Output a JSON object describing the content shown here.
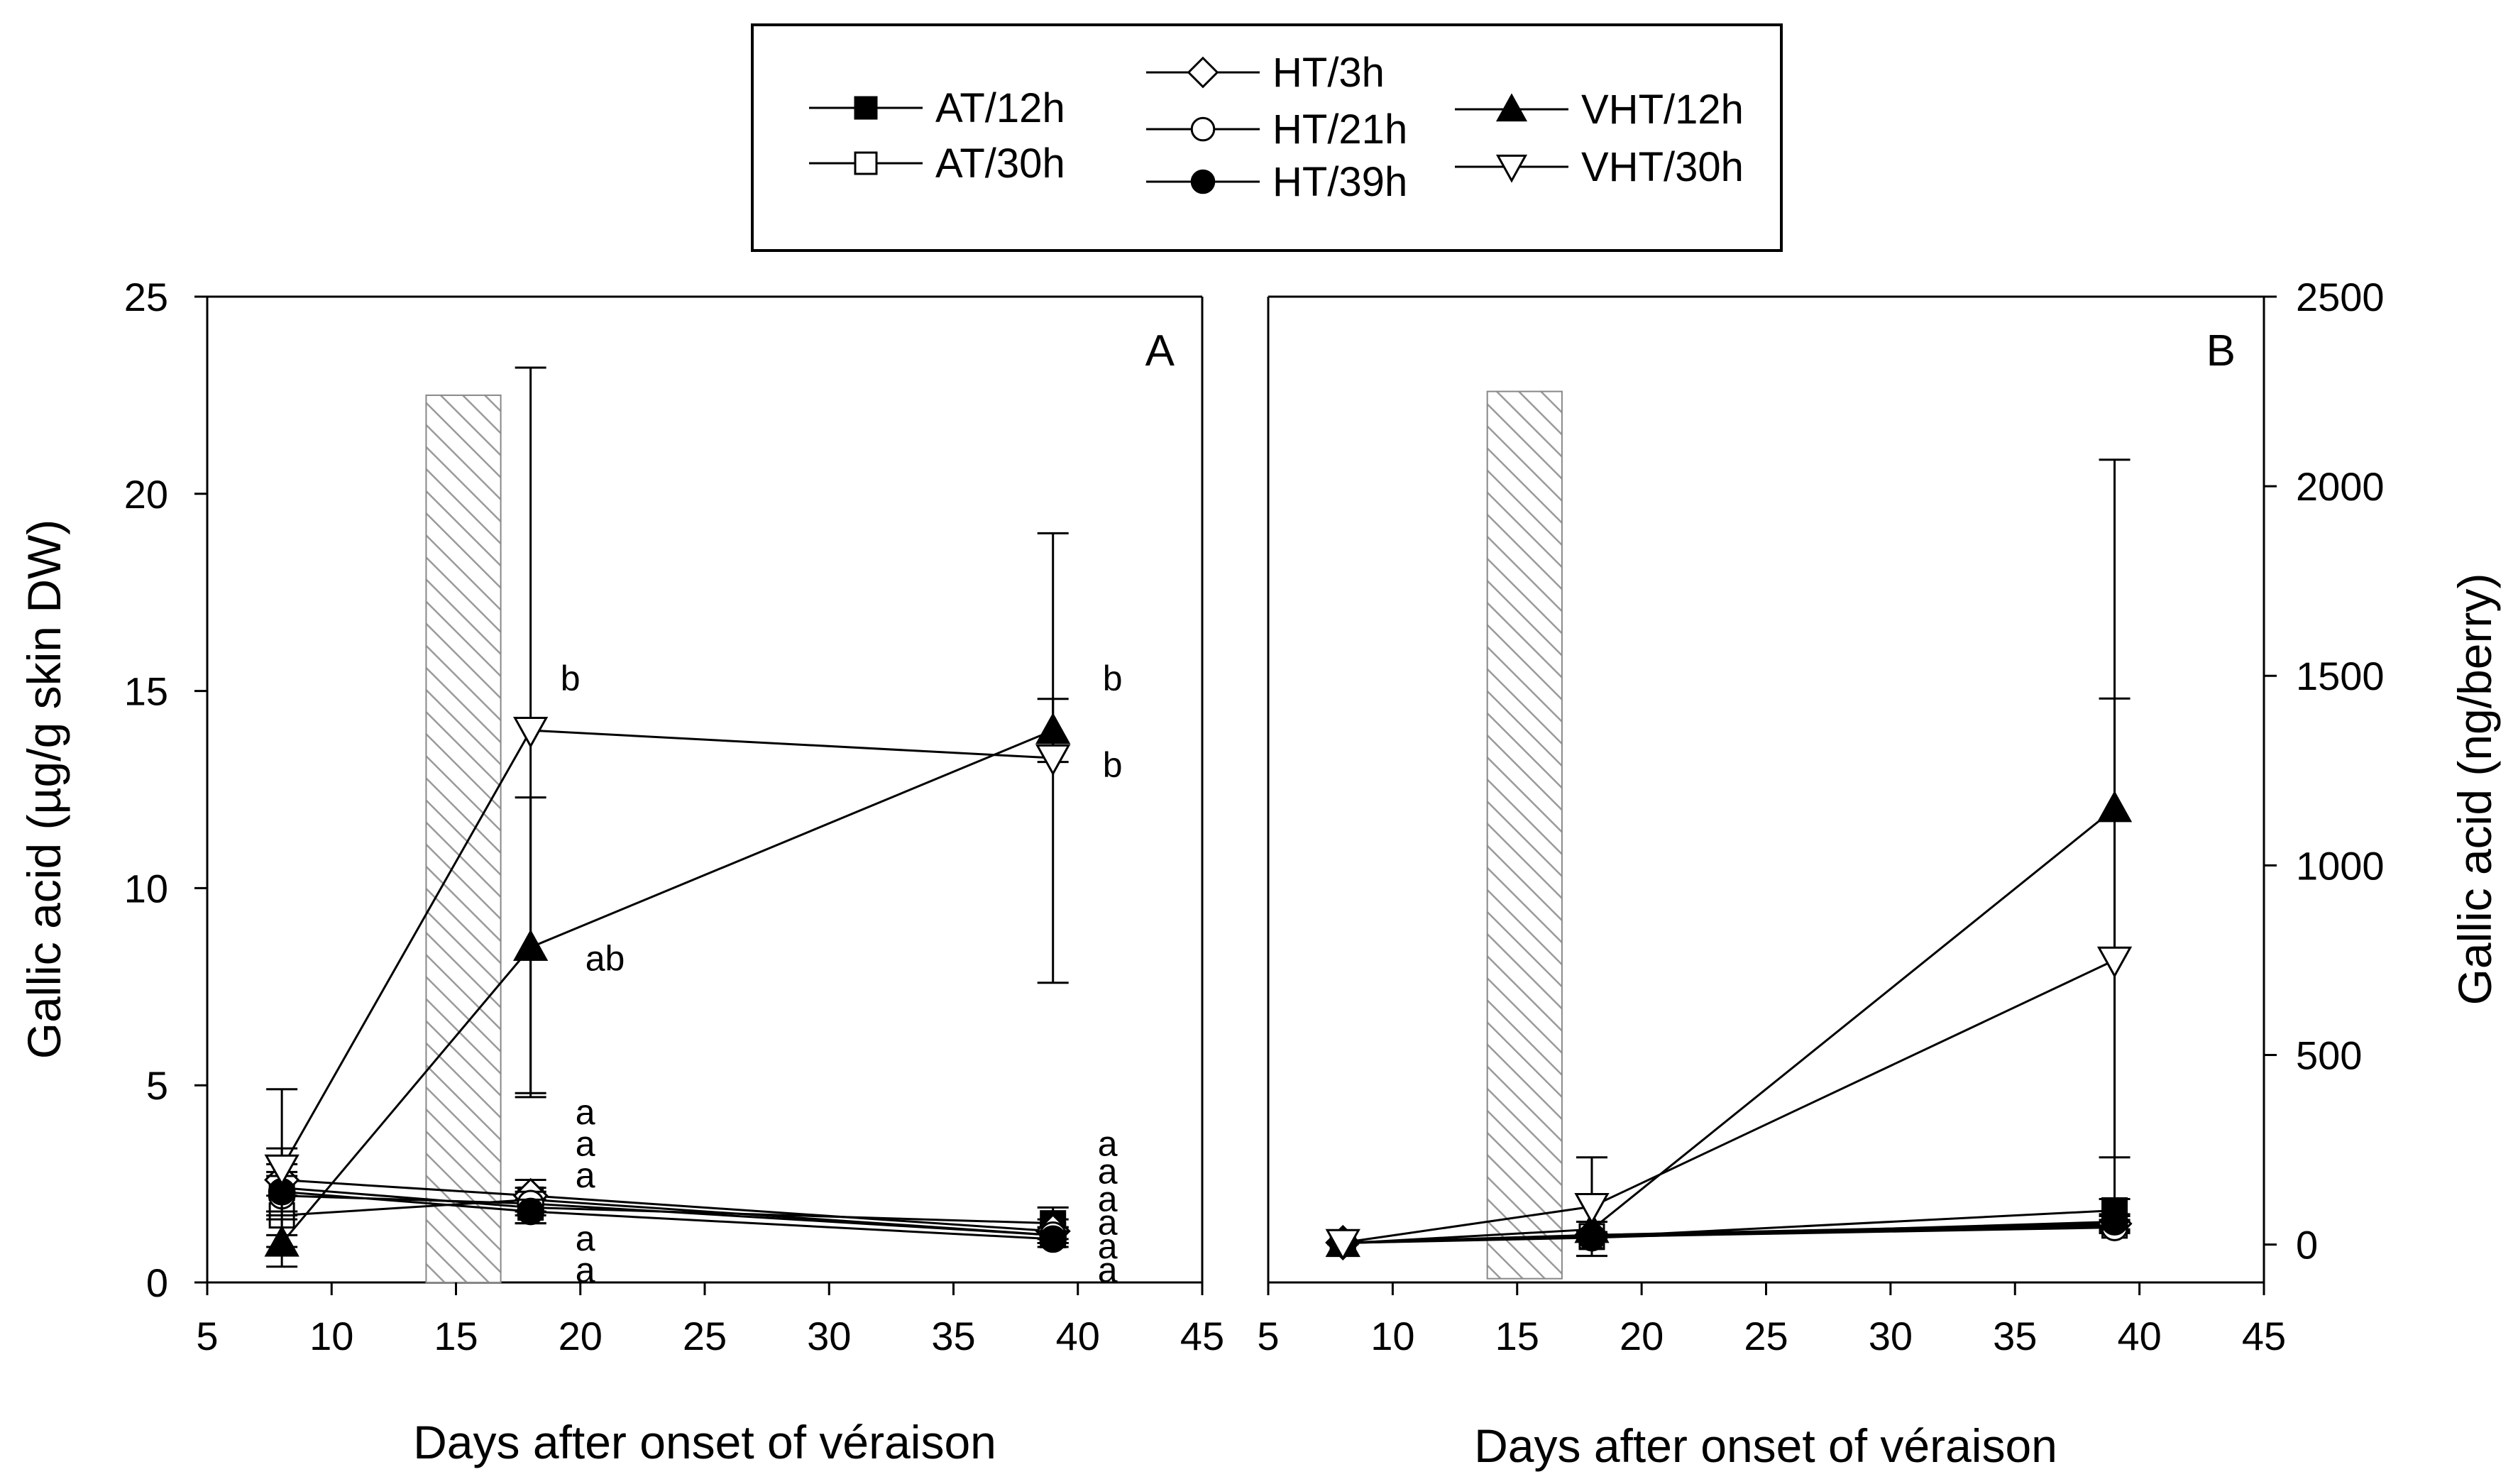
{
  "legend": {
    "entries": [
      {
        "label": "AT/12h",
        "marker": "square-filled"
      },
      {
        "label": "AT/30h",
        "marker": "square-open"
      },
      {
        "label": "HT/3h",
        "marker": "diamond-open"
      },
      {
        "label": "HT/21h",
        "marker": "circle-open"
      },
      {
        "label": "HT/39h",
        "marker": "circle-filled"
      },
      {
        "label": "VHT/12h",
        "marker": "triangle-up-filled"
      },
      {
        "label": "VHT/30h",
        "marker": "triangle-down-open"
      }
    ]
  },
  "shading": {
    "x_start": 13.8,
    "x_end": 16.8,
    "pattern": "diagonal-hatch",
    "color": "#bdbdbd"
  },
  "chart_data": [
    {
      "type": "line",
      "panel": "A",
      "xlabel": "Days after onset of véraison",
      "ylabel": "Gallic acid (µg/g skin DW)",
      "xlim": [
        5,
        45
      ],
      "ylim": [
        0,
        25
      ],
      "xticks": [
        "5",
        "10",
        "15",
        "20",
        "25",
        "30",
        "35",
        "40",
        "45"
      ],
      "yticks": [
        "0",
        "5",
        "10",
        "15",
        "20",
        "25"
      ],
      "y_axis_side": "left",
      "series": [
        {
          "name": "AT/12h",
          "x": [
            8,
            18,
            39
          ],
          "y": [
            2.4,
            1.9,
            1.5
          ],
          "err": [
            0.6,
            0.4,
            0.4
          ]
        },
        {
          "name": "AT/30h",
          "x": [
            8,
            18,
            39
          ],
          "y": [
            1.7,
            2.1,
            1.2
          ],
          "err": [
            0.5,
            0.3,
            0.2
          ]
        },
        {
          "name": "HT/3h",
          "x": [
            8,
            18,
            39
          ],
          "y": [
            2.6,
            2.2,
            1.3
          ],
          "err": [
            0.8,
            0.4,
            0.3
          ]
        },
        {
          "name": "HT/21h",
          "x": [
            8,
            18,
            39
          ],
          "y": [
            2.2,
            2.0,
            1.2
          ],
          "err": [
            0.5,
            0.3,
            0.2
          ]
        },
        {
          "name": "HT/39h",
          "x": [
            8,
            18,
            39
          ],
          "y": [
            2.3,
            1.8,
            1.1
          ],
          "err": [
            0.5,
            0.3,
            0.2
          ]
        },
        {
          "name": "VHT/12h",
          "x": [
            8,
            18,
            39
          ],
          "y": [
            1.0,
            8.5,
            14.0
          ],
          "err": [
            0.6,
            3.8,
            0.8
          ]
        },
        {
          "name": "VHT/30h",
          "x": [
            8,
            18,
            39
          ],
          "y": [
            2.9,
            14.0,
            13.3
          ],
          "err": [
            2.0,
            9.2,
            5.7
          ]
        }
      ],
      "annotations": [
        {
          "text": "b",
          "x": 19.2,
          "y": 15.3
        },
        {
          "text": "ab",
          "x": 20.2,
          "y": 8.2
        },
        {
          "text": "b",
          "x": 41.0,
          "y": 15.3
        },
        {
          "text": "b",
          "x": 41.0,
          "y": 13.1
        },
        {
          "text": "a",
          "x": 19.8,
          "y": 4.3
        },
        {
          "text": "a",
          "x": 19.8,
          "y": 3.5
        },
        {
          "text": "a",
          "x": 19.8,
          "y": 2.7
        },
        {
          "text": "a",
          "x": 19.8,
          "y": 1.1
        },
        {
          "text": "a",
          "x": 19.8,
          "y": 0.3
        },
        {
          "text": "a",
          "x": 40.8,
          "y": 3.5
        },
        {
          "text": "a",
          "x": 40.8,
          "y": 2.8
        },
        {
          "text": "a",
          "x": 40.8,
          "y": 2.1
        },
        {
          "text": "a",
          "x": 40.8,
          "y": 1.5
        },
        {
          "text": "a",
          "x": 40.8,
          "y": 0.9
        },
        {
          "text": "a",
          "x": 40.8,
          "y": 0.3
        }
      ]
    },
    {
      "type": "line",
      "panel": "B",
      "xlabel": "Days after onset of véraison",
      "ylabel": "Gallic acid (ng/berry)",
      "xlim": [
        5,
        45
      ],
      "ylim": [
        -100,
        2500
      ],
      "xticks": [
        "5",
        "10",
        "15",
        "20",
        "25",
        "30",
        "35",
        "40",
        "45"
      ],
      "yticks": [
        "0",
        "500",
        "1000",
        "1500",
        "2000",
        "2500"
      ],
      "y_axis_side": "right",
      "series": [
        {
          "name": "AT/12h",
          "x": [
            8,
            18,
            39
          ],
          "y": [
            5,
            20,
            90
          ],
          "err": [
            3,
            8,
            30
          ]
        },
        {
          "name": "AT/30h",
          "x": [
            8,
            18,
            39
          ],
          "y": [
            4,
            22,
            50
          ],
          "err": [
            3,
            6,
            15
          ]
        },
        {
          "name": "HT/3h",
          "x": [
            8,
            18,
            39
          ],
          "y": [
            5,
            25,
            55
          ],
          "err": [
            3,
            8,
            20
          ]
        },
        {
          "name": "HT/21h",
          "x": [
            8,
            18,
            39
          ],
          "y": [
            4,
            20,
            45
          ],
          "err": [
            3,
            6,
            15
          ]
        },
        {
          "name": "HT/39h",
          "x": [
            8,
            18,
            39
          ],
          "y": [
            4,
            18,
            60
          ],
          "err": [
            3,
            6,
            20
          ]
        },
        {
          "name": "VHT/12h",
          "x": [
            8,
            18,
            39
          ],
          "y": [
            3,
            40,
            1150
          ],
          "err": [
            2,
            20,
            920
          ]
        },
        {
          "name": "VHT/30h",
          "x": [
            8,
            18,
            39
          ],
          "y": [
            5,
            100,
            750
          ],
          "err": [
            3,
            130,
            690
          ]
        }
      ],
      "annotations": []
    }
  ]
}
